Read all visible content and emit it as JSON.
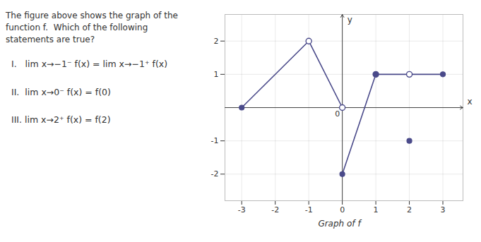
{
  "chart_data": {
    "type": "line",
    "title": "Graph of f",
    "xlabel": "x",
    "ylabel": "y",
    "color": "#4a4a8a",
    "xlim": [
      -3.5,
      3.6
    ],
    "ylim": [
      -2.8,
      2.8
    ],
    "xticks": [
      -3,
      -2,
      -1,
      0,
      1,
      2,
      3
    ],
    "yticks": [
      -2,
      -1,
      1,
      2
    ],
    "grid": true,
    "segments": [
      {
        "x": [
          -3,
          -1
        ],
        "y": [
          0,
          2
        ]
      },
      {
        "x": [
          -1,
          0
        ],
        "y": [
          2,
          0
        ]
      },
      {
        "x": [
          0,
          1
        ],
        "y": [
          -2,
          1
        ]
      },
      {
        "x": [
          1,
          2
        ],
        "y": [
          1,
          1
        ]
      },
      {
        "x": [
          2,
          3
        ],
        "y": [
          1,
          1
        ]
      }
    ],
    "open_points": [
      [
        -1,
        2
      ],
      [
        0,
        0
      ],
      [
        1,
        1
      ],
      [
        2,
        1
      ]
    ],
    "solid_points": [
      [
        -3,
        0
      ],
      [
        0,
        -2
      ],
      [
        1,
        1
      ],
      [
        2,
        -1
      ],
      [
        3,
        1
      ]
    ],
    "annotations": [
      {
        "text": "The figure above shows the graph of the function f.  Which of the following statements are true?"
      },
      {
        "text": "I.   lim x→−1⁻ f(x) = lim x→−1⁺ f(x)"
      },
      {
        "text": "II.  lim x→0⁻ f(x) = f(0)"
      },
      {
        "text": "III. lim x→2⁺ f(x) = f(2)"
      },
      {
        "text": "0",
        "x": 0,
        "y": 0
      }
    ]
  }
}
